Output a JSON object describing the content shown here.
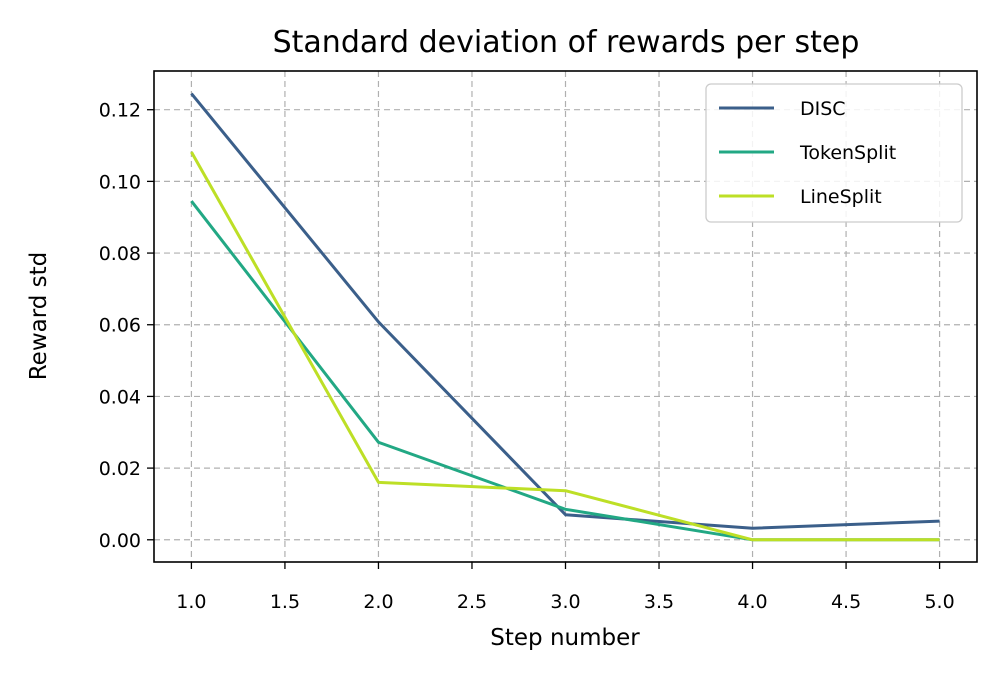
{
  "chart_data": {
    "type": "line",
    "title": "Standard deviation of rewards per step",
    "xlabel": "Step number",
    "ylabel": "Reward std",
    "x": [
      1.0,
      2.0,
      3.0,
      4.0,
      5.0
    ],
    "xlim": [
      0.8,
      5.2
    ],
    "ylim": [
      -0.0062,
      0.1308
    ],
    "xticks": [
      1.0,
      1.5,
      2.0,
      2.5,
      3.0,
      3.5,
      4.0,
      4.5,
      5.0
    ],
    "xtick_labels": [
      "1.0",
      "1.5",
      "2.0",
      "2.5",
      "3.0",
      "3.5",
      "4.0",
      "4.5",
      "5.0"
    ],
    "yticks": [
      0.0,
      0.02,
      0.04,
      0.06,
      0.08,
      0.1,
      0.12
    ],
    "ytick_labels": [
      "0.00",
      "0.02",
      "0.04",
      "0.06",
      "0.08",
      "0.10",
      "0.12"
    ],
    "grid": true,
    "legend_position": "top-right",
    "series": [
      {
        "name": "DISC",
        "color": "#3b5f8a",
        "values": [
          0.1245,
          0.0608,
          0.007,
          0.0032,
          0.0052
        ]
      },
      {
        "name": "TokenSplit",
        "color": "#22a884",
        "values": [
          0.0945,
          0.0272,
          0.0085,
          0.0,
          0.0
        ]
      },
      {
        "name": "LineSplit",
        "color": "#bddf26",
        "values": [
          0.1082,
          0.016,
          0.0137,
          0.0,
          0.0
        ]
      }
    ]
  }
}
